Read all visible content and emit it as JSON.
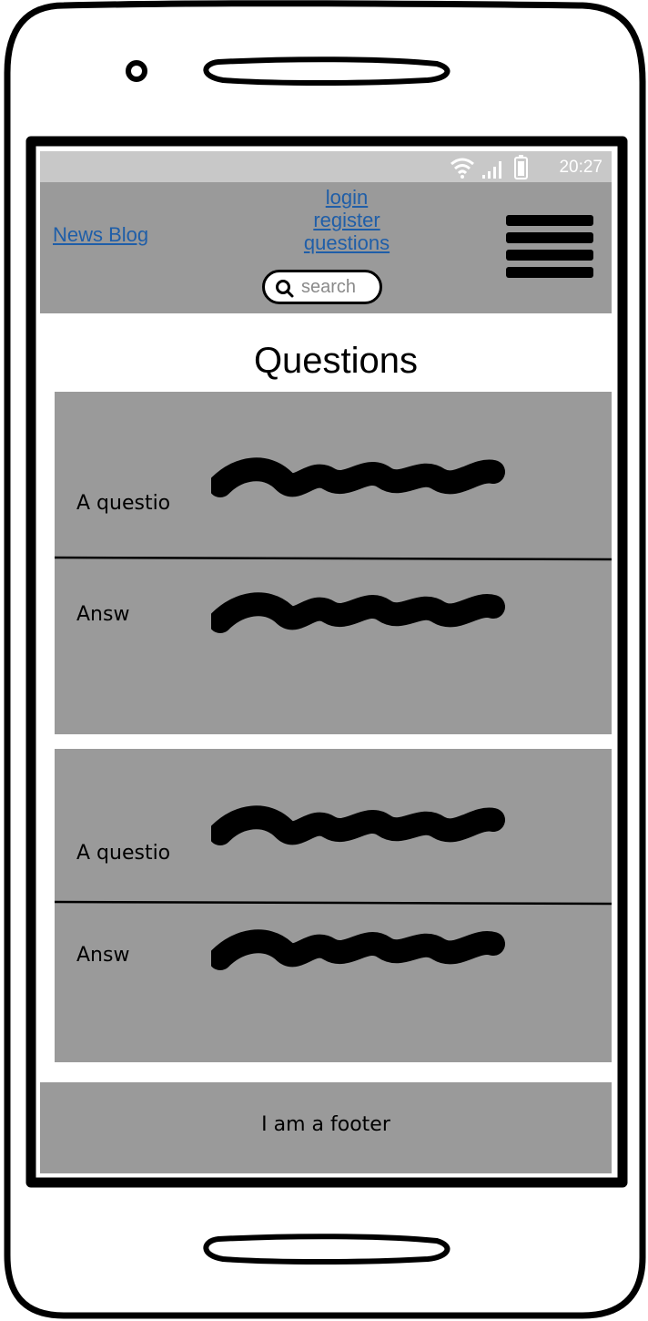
{
  "status_bar": {
    "time": "20:27",
    "icons": [
      "wifi-icon",
      "signal-icon",
      "battery-icon"
    ]
  },
  "header": {
    "brand": "News Blog",
    "links": [
      "login",
      "register",
      "questions"
    ],
    "search_placeholder": "search",
    "menu_icon": "hamburger-menu-icon"
  },
  "page": {
    "title": "Questions"
  },
  "qa_items": [
    {
      "question_label": "A questio",
      "answer_label": "Answ"
    },
    {
      "question_label": "A questio",
      "answer_label": "Answ"
    }
  ],
  "footer": {
    "text": "I am a footer"
  },
  "colors": {
    "panel_gray": "#9a9a9a",
    "status_gray": "#c8c8c8",
    "link_blue": "#1f5ea8"
  }
}
